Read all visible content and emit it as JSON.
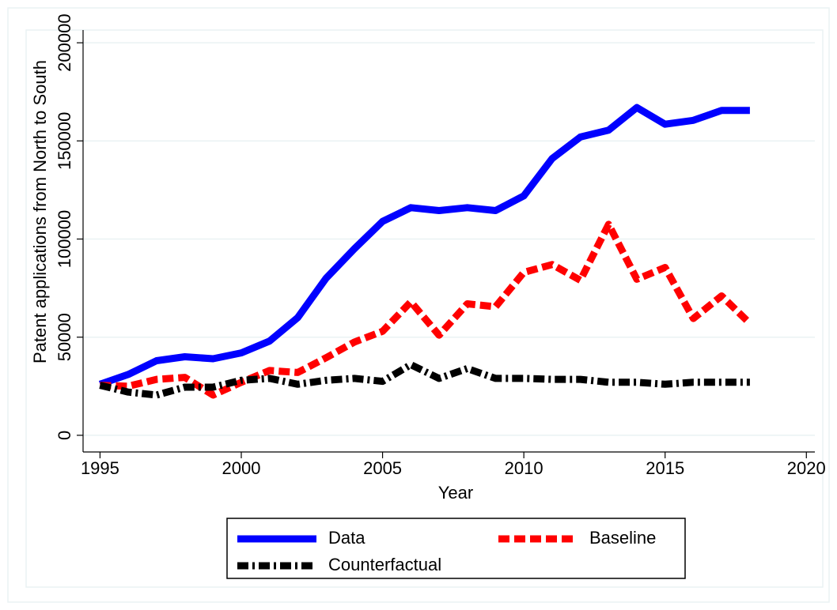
{
  "chart_data": {
    "type": "line",
    "x_label": "Year",
    "y_label": "Patent applications from North to South",
    "x": [
      1995,
      1996,
      1997,
      1998,
      1999,
      2000,
      2001,
      2002,
      2003,
      2004,
      2005,
      2006,
      2007,
      2008,
      2009,
      2010,
      2011,
      2012,
      2013,
      2014,
      2015,
      2016,
      2017,
      2018
    ],
    "series": [
      {
        "name": "Data",
        "color": "#0000ff",
        "style": "solid",
        "values": [
          26000,
          31000,
          38000,
          40000,
          39000,
          42000,
          48000,
          60000,
          80000,
          95000,
          109000,
          116000,
          114500,
          116000,
          114500,
          122000,
          141000,
          152000,
          155500,
          167000,
          158500,
          160500,
          165500,
          165500
        ]
      },
      {
        "name": "Baseline",
        "color": "#ff0000",
        "style": "dash",
        "values": [
          25500,
          25000,
          28500,
          29500,
          20500,
          27000,
          33000,
          32000,
          39500,
          47500,
          53000,
          68000,
          51000,
          67000,
          65500,
          83000,
          87000,
          79000,
          107500,
          79500,
          85500,
          59500,
          71000,
          57000
        ]
      },
      {
        "name": "Counterfactual",
        "color": "#000000",
        "style": "dashdot",
        "values": [
          25500,
          22000,
          20500,
          24500,
          24500,
          28000,
          29000,
          26000,
          28000,
          29000,
          27500,
          36000,
          29000,
          34000,
          29000,
          29000,
          28500,
          28500,
          27000,
          27000,
          26000,
          27000,
          27000,
          27000
        ]
      }
    ],
    "xlim": [
      1994.4,
      2020.3
    ],
    "xticks": [
      1995,
      2000,
      2005,
      2010,
      2015,
      2020
    ],
    "ylim": [
      -8500,
      206500
    ],
    "yticks": [
      0,
      50000,
      100000,
      150000,
      200000
    ],
    "grid": true,
    "legend_position": "bottom"
  }
}
